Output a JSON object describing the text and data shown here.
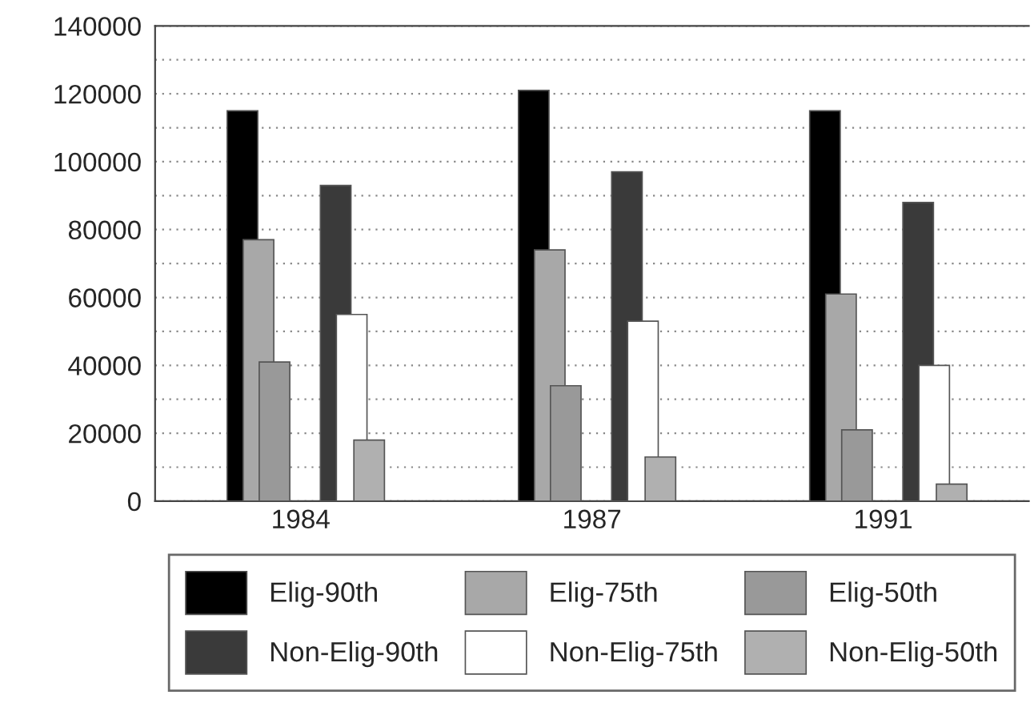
{
  "chart_data": {
    "type": "bar",
    "categories": [
      "1984",
      "1987",
      "1991"
    ],
    "series": [
      {
        "name": "Elig-90th",
        "color": "#000000",
        "values": [
          115000,
          121000,
          115000
        ]
      },
      {
        "name": "Elig-75th",
        "color": "#a8a8a8",
        "values": [
          77000,
          74000,
          61000
        ]
      },
      {
        "name": "Elig-50th",
        "color": "#999999",
        "values": [
          41000,
          34000,
          21000
        ]
      },
      {
        "name": "Non-Elig-90th",
        "color": "#3a3a3a",
        "values": [
          93000,
          97000,
          88000
        ]
      },
      {
        "name": "Non-Elig-75th",
        "color": "#ffffff",
        "values": [
          55000,
          53000,
          40000
        ]
      },
      {
        "name": "Non-Elig-50th",
        "color": "#b0b0b0",
        "values": [
          18000,
          13000,
          5000
        ]
      }
    ],
    "ylim": [
      0,
      140000
    ],
    "yticks": [
      0,
      {
        "value": 10000,
        "label": null
      },
      20000,
      {
        "value": 30000,
        "label": null
      },
      40000,
      {
        "value": 50000,
        "label": null
      },
      60000,
      {
        "value": 70000,
        "label": null
      },
      80000,
      {
        "value": 90000,
        "label": null
      },
      100000,
      {
        "value": 110000,
        "label": null
      },
      120000,
      {
        "value": 130000,
        "label": null
      },
      140000
    ],
    "grid": "y",
    "legend": "bottom"
  }
}
